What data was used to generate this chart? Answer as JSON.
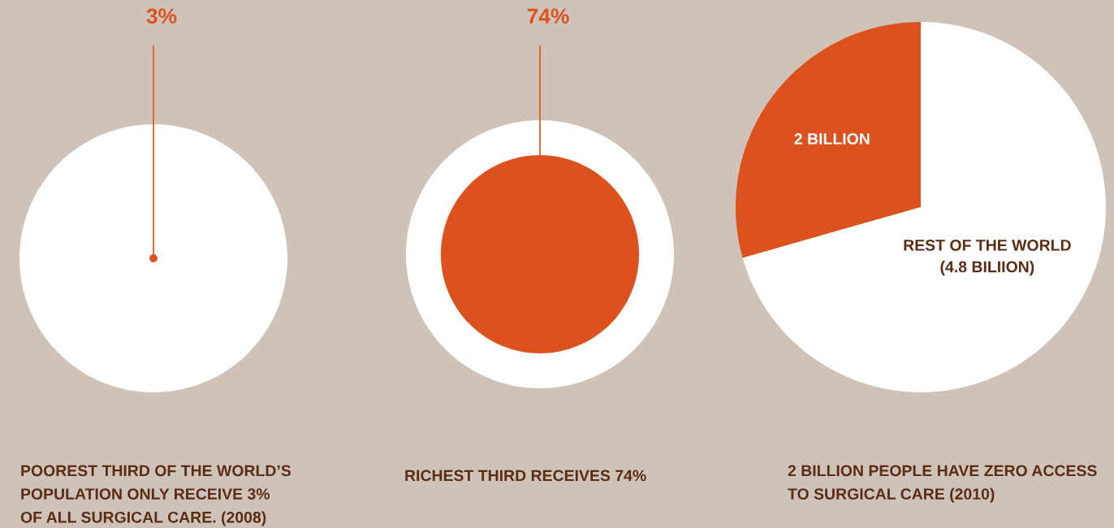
{
  "chart_data": [
    {
      "type": "other",
      "values": [
        3
      ],
      "value_labels": [
        "3%"
      ],
      "colors": [
        "#dc521e"
      ],
      "annotations": [
        "POOREST THIRD OF THE WORLD’S\nPOPULATION ONLY RECEIVE 3%\nOF ALL SURGICAL CARE. (2008)"
      ]
    },
    {
      "type": "other",
      "values": [
        74
      ],
      "value_labels": [
        "74%"
      ],
      "colors": [
        "#dc521e"
      ],
      "annotations": [
        "RICHEST THIRD RECEIVES 74%"
      ]
    },
    {
      "type": "pie",
      "categories": [
        "2 BILLION",
        "REST OF THE WORLD\n(4.8 BILIION)"
      ],
      "values": [
        2,
        4.8
      ],
      "colors": [
        "#dc521e",
        "#ffffff"
      ],
      "annotations": [
        "2 BILLION PEOPLE HAVE ZERO ACCESS\nTO SURGICAL CARE (2010)"
      ]
    }
  ]
}
